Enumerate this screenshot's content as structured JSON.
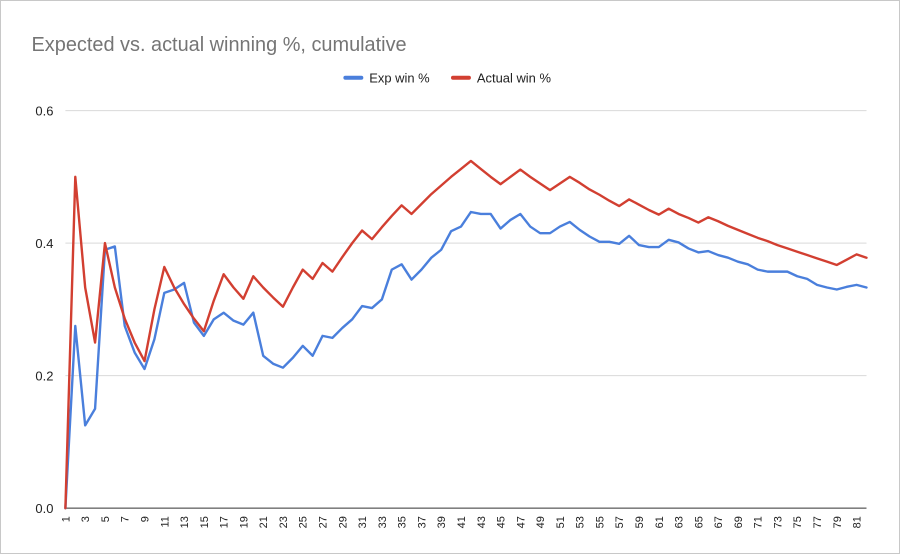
{
  "chart_data": {
    "type": "line",
    "title": "Expected vs. actual winning %, cumulative",
    "xlabel": "",
    "ylabel": "",
    "ylim": [
      0,
      0.6
    ],
    "yticks": [
      "0.0",
      "0.2",
      "0.4",
      "0.6"
    ],
    "x_start": 1,
    "x_end": 82,
    "x_tick_step": 2,
    "grid": true,
    "legend_position": "top",
    "series": [
      {
        "name": "Exp win %",
        "color": "#4a7fdc",
        "values": [
          0.0,
          0.275,
          0.125,
          0.15,
          0.39,
          0.395,
          0.275,
          0.235,
          0.21,
          0.255,
          0.325,
          0.33,
          0.34,
          0.28,
          0.26,
          0.285,
          0.295,
          0.283,
          0.277,
          0.295,
          0.23,
          0.218,
          0.212,
          0.227,
          0.245,
          0.23,
          0.26,
          0.257,
          0.272,
          0.285,
          0.305,
          0.302,
          0.315,
          0.36,
          0.368,
          0.345,
          0.36,
          0.378,
          0.39,
          0.418,
          0.425,
          0.447,
          0.444,
          0.444,
          0.422,
          0.435,
          0.444,
          0.425,
          0.415,
          0.415,
          0.425,
          0.432,
          0.42,
          0.41,
          0.402,
          0.402,
          0.399,
          0.411,
          0.397,
          0.394,
          0.394,
          0.405,
          0.401,
          0.392,
          0.386,
          0.388,
          0.382,
          0.378,
          0.372,
          0.368,
          0.36,
          0.357,
          0.357,
          0.357,
          0.35,
          0.346,
          0.337,
          0.333,
          0.33,
          0.334,
          0.337,
          0.333
        ]
      },
      {
        "name": "Actual win %",
        "color": "#d23f31",
        "values": [
          0.0,
          0.5,
          0.333,
          0.25,
          0.4,
          0.333,
          0.286,
          0.25,
          0.222,
          0.3,
          0.364,
          0.333,
          0.308,
          0.286,
          0.267,
          0.313,
          0.353,
          0.333,
          0.316,
          0.35,
          0.333,
          0.318,
          0.304,
          0.333,
          0.36,
          0.346,
          0.37,
          0.357,
          0.379,
          0.4,
          0.419,
          0.406,
          0.424,
          0.441,
          0.457,
          0.444,
          0.459,
          0.474,
          0.487,
          0.5,
          0.512,
          0.524,
          0.512,
          0.5,
          0.489,
          0.5,
          0.511,
          0.5,
          0.49,
          0.48,
          0.49,
          0.5,
          0.491,
          0.481,
          0.473,
          0.464,
          0.456,
          0.466,
          0.458,
          0.45,
          0.443,
          0.452,
          0.444,
          0.438,
          0.431,
          0.439,
          0.433,
          0.426,
          0.42,
          0.414,
          0.408,
          0.403,
          0.397,
          0.392,
          0.387,
          0.382,
          0.377,
          0.372,
          0.367,
          0.375,
          0.383,
          0.378
        ]
      }
    ]
  }
}
